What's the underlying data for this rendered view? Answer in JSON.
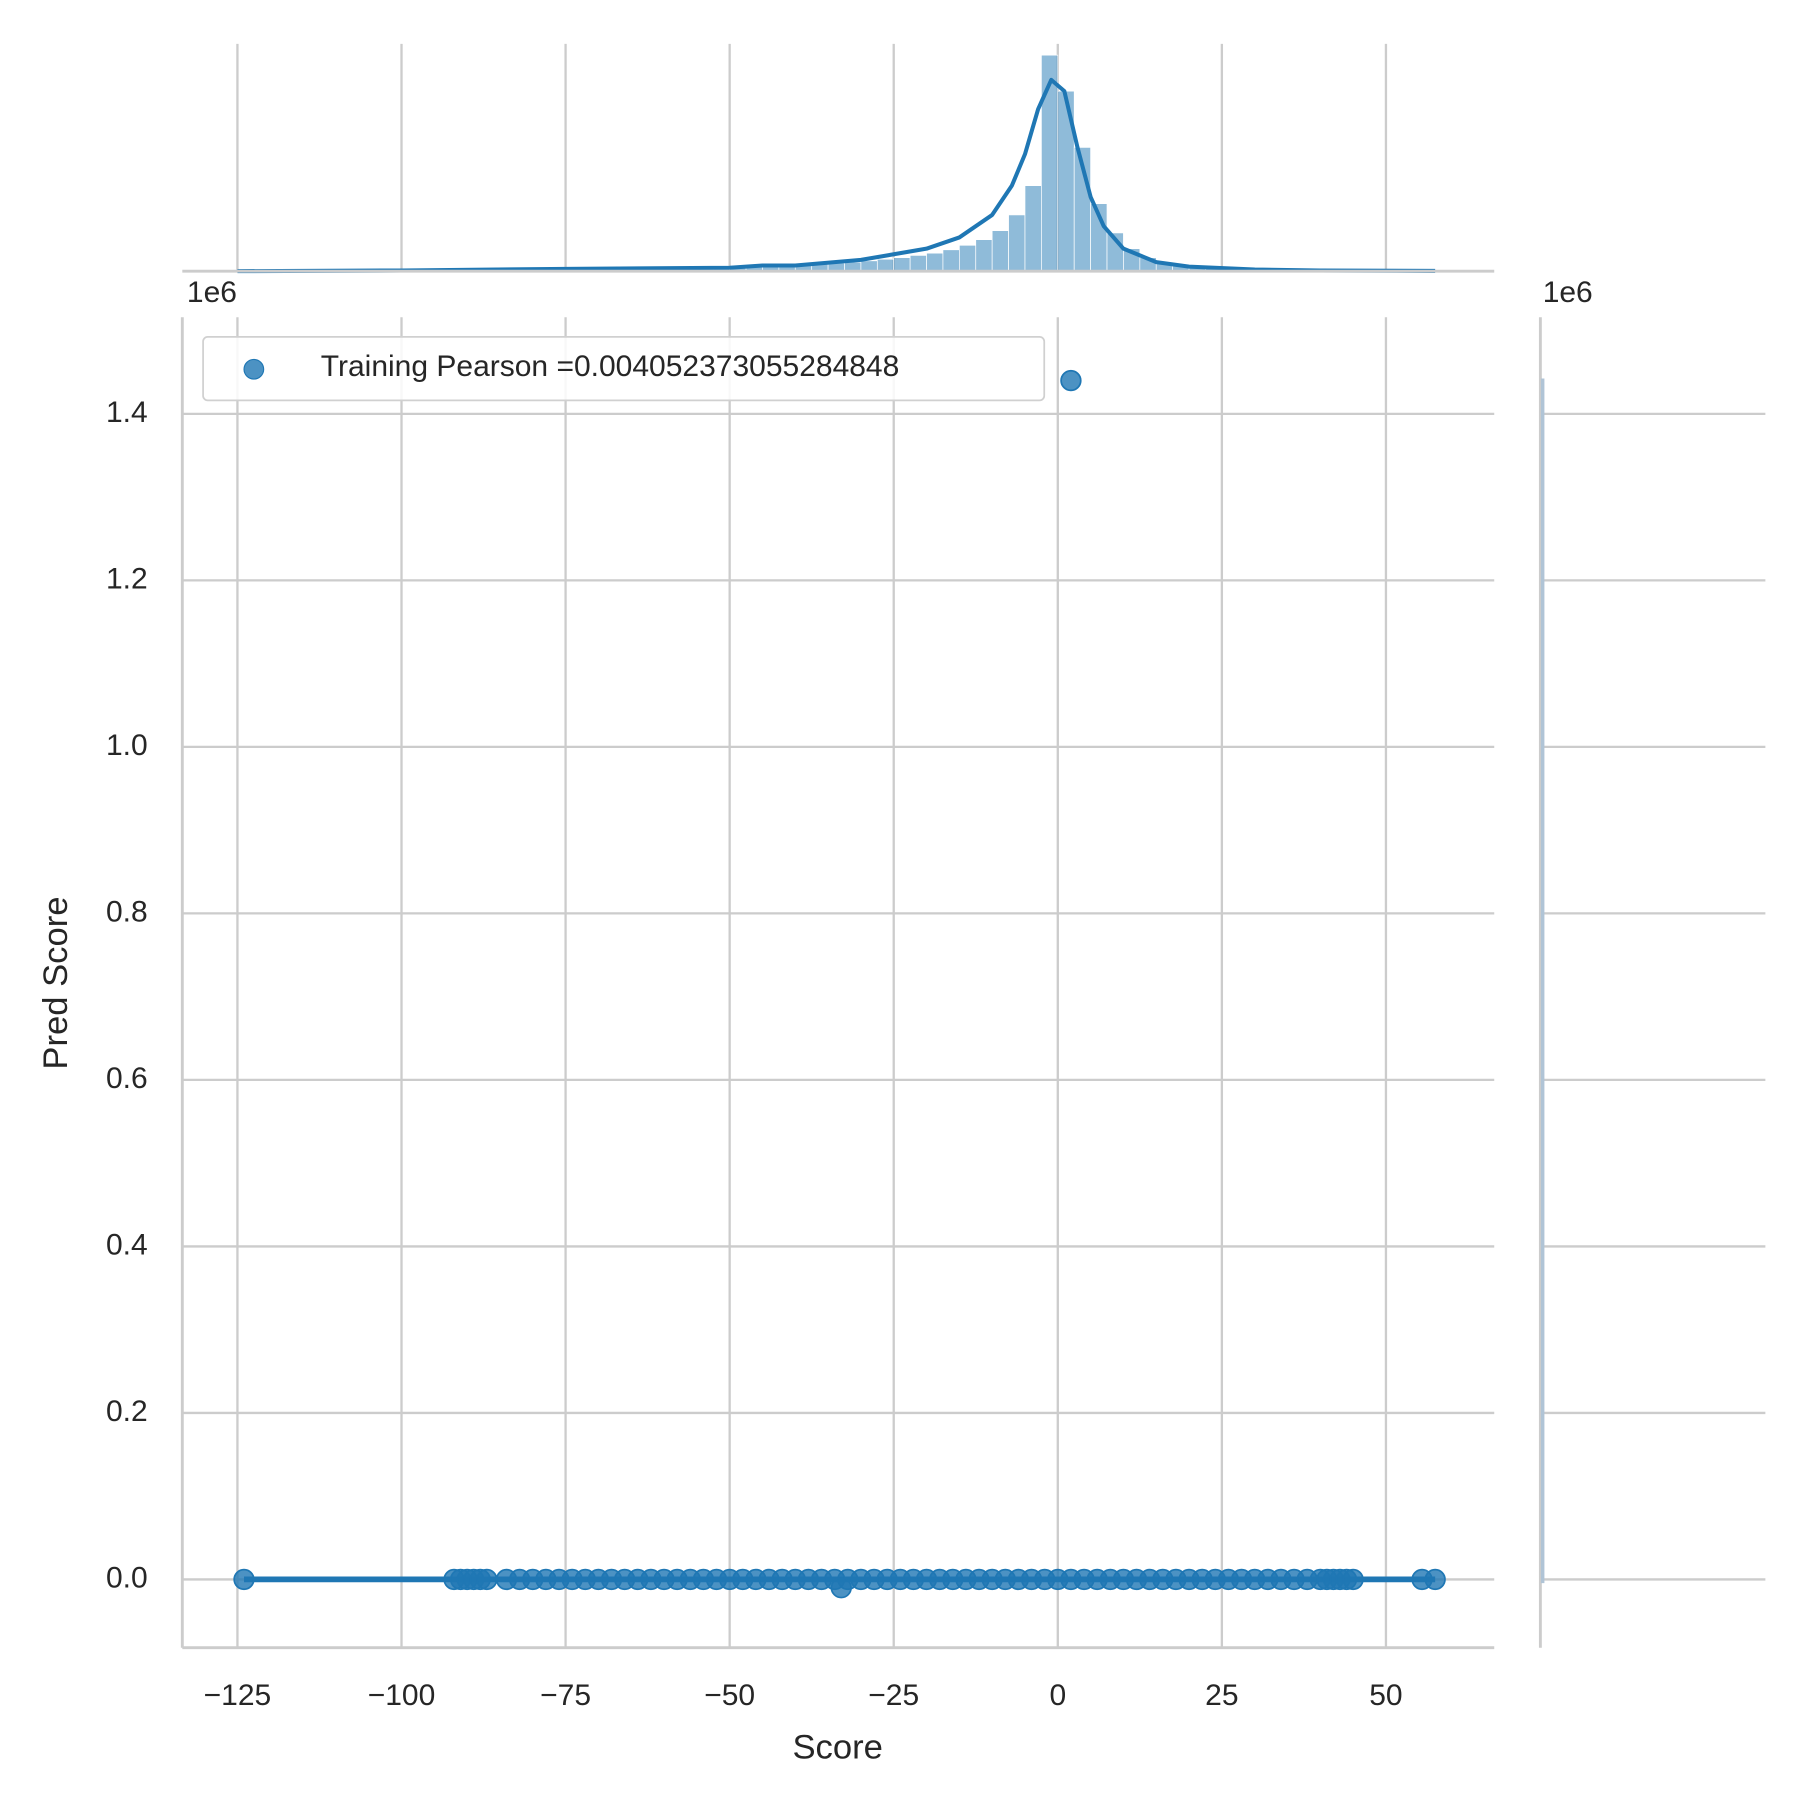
{
  "chart_data": [
    {
      "type": "scatter",
      "xlabel": "Score",
      "ylabel": "Pred Score",
      "y_offset_label": "1e6",
      "marginal_offset_label": "1e6",
      "xlim": [
        -133.4,
        66.5
      ],
      "ylim": [
        -0.082,
        1.516
      ],
      "xticks": [
        {
          "value": -125,
          "label": "−125"
        },
        {
          "value": -100,
          "label": "−100"
        },
        {
          "value": -75,
          "label": "−75"
        },
        {
          "value": -50,
          "label": "−50"
        },
        {
          "value": -25,
          "label": "−25"
        },
        0,
        25,
        50
      ],
      "yticks": [
        {
          "value": 0,
          "label": "0.0"
        },
        0.2,
        0.4,
        0.6,
        0.8,
        {
          "value": 1,
          "label": "1.0"
        },
        1.2,
        1.4
      ],
      "grid": true,
      "legend": "upper left",
      "series": [
        {
          "name": "Training Pearson =0.004052373055284848",
          "color": "#1f77b4",
          "x": [
            -124,
            -92,
            -91,
            -90,
            -89,
            -88,
            -87,
            -84,
            -82,
            -80,
            -78,
            -76,
            -74,
            -72,
            -70,
            -68,
            -66,
            -64,
            -62,
            -60,
            -58,
            -56,
            -54,
            -52,
            -50,
            -48,
            -46,
            -44,
            -42,
            -40,
            -38,
            -36,
            -34,
            -32,
            -30,
            -28,
            -26,
            -24,
            -22,
            -20,
            -18,
            -16,
            -14,
            -12,
            -10,
            -8,
            -6,
            -4,
            -2,
            0,
            2,
            4,
            6,
            8,
            10,
            12,
            14,
            16,
            18,
            20,
            22,
            24,
            26,
            28,
            30,
            32,
            34,
            36,
            38,
            40,
            41,
            42,
            43,
            44,
            45,
            55.5,
            57.5,
            2,
            -33
          ],
          "values": [
            0,
            0,
            0,
            0,
            0,
            0,
            0,
            0,
            0,
            0,
            0,
            0,
            0,
            0,
            0,
            0,
            0,
            0,
            0,
            0,
            0,
            0,
            0,
            0,
            0,
            0,
            0,
            0,
            0,
            0,
            0,
            0,
            0,
            0,
            0,
            0,
            0,
            0,
            0,
            0,
            0,
            0,
            0,
            0,
            0,
            0,
            0,
            0,
            0,
            0,
            0,
            0,
            0,
            0,
            0,
            0,
            0,
            0,
            0,
            0,
            0,
            0,
            0,
            0,
            0,
            0,
            0,
            0,
            0,
            0,
            0,
            0,
            0,
            0,
            0,
            0,
            0,
            1.44,
            -0.01
          ]
        }
      ],
      "regression": {
        "color": "#1f77b4",
        "x": [
          -124,
          57.5
        ],
        "values": [
          0,
          0
        ]
      }
    },
    {
      "type": "histogram",
      "color": "#1f77b4",
      "xlim": [
        -133.4,
        66.5
      ],
      "ylim": [
        0,
        100
      ],
      "bins": [
        -125,
        -122.5,
        -120,
        -117.5,
        -115,
        -112.5,
        -110,
        -107.5,
        -105,
        -102.5,
        -100,
        -97.5,
        -95,
        -92.5,
        -90,
        -87.5,
        -85,
        -82.5,
        -80,
        -77.5,
        -75,
        -72.5,
        -70,
        -67.5,
        -65,
        -62.5,
        -60,
        -57.5,
        -55,
        -52.5,
        -50,
        -47.5,
        -45,
        -42.5,
        -40,
        -37.5,
        -35,
        -32.5,
        -30,
        -27.5,
        -25,
        -22.5,
        -20,
        -17.5,
        -15,
        -12.5,
        -10,
        -7.5,
        -5,
        -2.5,
        0,
        2.5,
        5,
        7.5,
        10,
        12.5,
        15,
        17.5,
        20,
        22.5,
        25,
        27.5,
        30,
        32.5,
        35,
        37.5,
        40,
        42.5,
        45,
        47.5,
        50,
        52.5,
        55,
        57.5
      ],
      "values": [
        0,
        0,
        0,
        0,
        0,
        0,
        0,
        0,
        0,
        0,
        0,
        0,
        0.1,
        0.1,
        0.1,
        0.2,
        0.2,
        0.3,
        0.3,
        0.4,
        0.5,
        0.6,
        0.7,
        0.8,
        0.9,
        1,
        1.1,
        1.2,
        1.3,
        1.5,
        1.8,
        2,
        2.2,
        2.5,
        2.8,
        3.2,
        3.6,
        4,
        4.6,
        5.3,
        6,
        7,
        8,
        9.5,
        11.5,
        14,
        18,
        25,
        38,
        96,
        80,
        55,
        30,
        17,
        10,
        6,
        3.8,
        2.5,
        1.7,
        1.2,
        0.9,
        0.7,
        0.5,
        0.4,
        0.3,
        0.2,
        0.2,
        0.1,
        0.1,
        0.1,
        0.1,
        0.1,
        0.1
      ],
      "kde": {
        "x": [
          -125,
          -100,
          -75,
          -50,
          -45,
          -40,
          -30,
          -20,
          -15,
          -10,
          -7,
          -5,
          -3,
          -1,
          1,
          3,
          5,
          7,
          10,
          15,
          20,
          30,
          40,
          57.5
        ],
        "values": [
          0,
          0.3,
          1,
          1.5,
          2.5,
          2.5,
          5,
          10,
          15,
          25,
          38,
          52,
          72,
          85,
          80,
          55,
          33,
          20,
          10,
          4,
          2,
          0.7,
          0.3,
          0.1
        ]
      }
    }
  ]
}
